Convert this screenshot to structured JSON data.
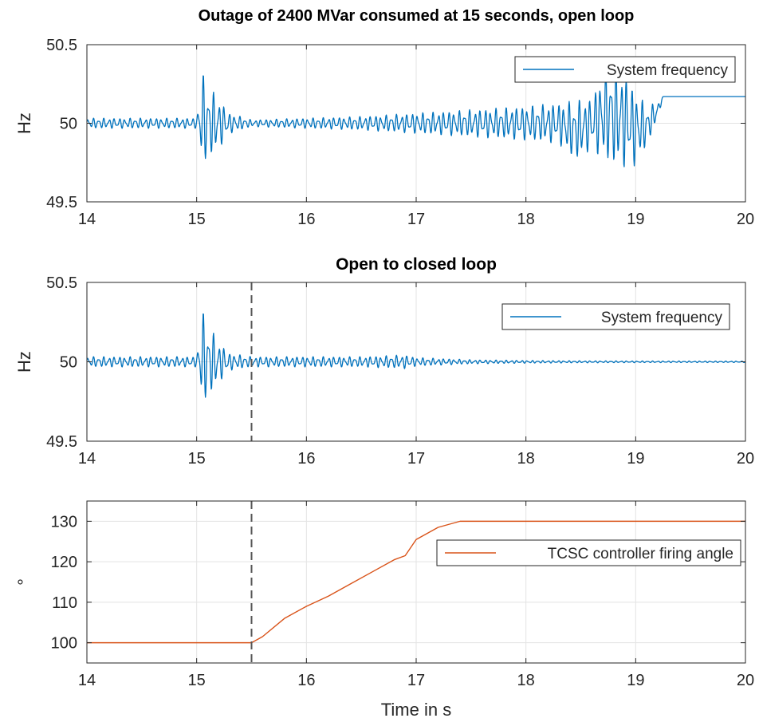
{
  "colors": {
    "frequency": "#0072BD",
    "angle": "#D95319",
    "grid": "#e3e3e3",
    "axis": "#262626"
  },
  "chart_data": [
    {
      "type": "line",
      "title": "Outage of 2400 MVar consumed at 15 seconds, open loop",
      "ylabel": "Hz",
      "xlabel": "",
      "xlim": [
        14,
        20
      ],
      "ylim": [
        49.5,
        50.5
      ],
      "xticks": [
        "14",
        "15",
        "16",
        "17",
        "18",
        "19",
        "20"
      ],
      "yticks": [
        "49.5",
        "50",
        "50.5"
      ],
      "grid": true,
      "legend_position": "top-right",
      "series": [
        {
          "name": "System frequency",
          "x": [
            14.0,
            14.5,
            15.0,
            15.05,
            15.1,
            15.2,
            15.3,
            15.5,
            16.0,
            16.5,
            17.0,
            17.5,
            18.0,
            18.3,
            18.45,
            18.6,
            18.7,
            18.8,
            18.9,
            19.0,
            19.1,
            19.2,
            19.25,
            19.5,
            20.0
          ],
          "amplitude": [
            0.03,
            0.03,
            0.03,
            0.28,
            0.22,
            0.15,
            0.06,
            0.02,
            0.03,
            0.04,
            0.06,
            0.08,
            0.1,
            0.12,
            0.18,
            0.15,
            0.26,
            0.3,
            0.28,
            0.22,
            0.12,
            0.05,
            0.0,
            0.0,
            0.0
          ],
          "center": [
            50.0,
            50.0,
            50.0,
            50.03,
            50.0,
            50.0,
            50.0,
            50.0,
            50.0,
            50.0,
            50.0,
            50.0,
            50.0,
            50.0,
            49.95,
            50.0,
            50.05,
            50.05,
            50.02,
            49.97,
            49.98,
            50.08,
            50.17,
            50.17,
            50.17
          ]
        }
      ]
    },
    {
      "type": "line",
      "title": "Open to closed loop",
      "ylabel": "Hz",
      "xlabel": "",
      "xlim": [
        14,
        20
      ],
      "ylim": [
        49.5,
        50.5
      ],
      "xticks": [
        "14",
        "15",
        "16",
        "17",
        "18",
        "19",
        "20"
      ],
      "yticks": [
        "49.5",
        "50",
        "50.5"
      ],
      "grid": true,
      "legend_position": "top-right",
      "vline": 15.5,
      "series": [
        {
          "name": "System frequency",
          "x": [
            14.0,
            14.5,
            15.0,
            15.05,
            15.1,
            15.2,
            15.3,
            15.5,
            16.0,
            16.5,
            16.9,
            17.0,
            17.5,
            18.0,
            18.5,
            19.0,
            20.0
          ],
          "amplitude": [
            0.03,
            0.03,
            0.03,
            0.28,
            0.22,
            0.12,
            0.05,
            0.03,
            0.03,
            0.03,
            0.04,
            0.025,
            0.012,
            0.008,
            0.006,
            0.005,
            0.004
          ],
          "center": [
            50.0,
            50.0,
            50.0,
            50.03,
            50.0,
            50.0,
            50.0,
            50.0,
            50.0,
            50.0,
            50.0,
            50.0,
            50.0,
            50.0,
            50.0,
            50.0,
            50.0
          ]
        }
      ]
    },
    {
      "type": "line",
      "title": "",
      "ylabel": "°",
      "xlabel": "Time in s",
      "xlim": [
        14,
        20
      ],
      "ylim": [
        95,
        135
      ],
      "xticks": [
        "14",
        "15",
        "16",
        "17",
        "18",
        "19",
        "20"
      ],
      "yticks": [
        "100",
        "110",
        "120",
        "130"
      ],
      "grid": true,
      "legend_position": "right",
      "vline": 15.5,
      "series": [
        {
          "name": "TCSC controller firing angle",
          "x": [
            14.0,
            15.5,
            15.6,
            15.8,
            16.0,
            16.2,
            16.4,
            16.6,
            16.8,
            16.9,
            17.0,
            17.2,
            17.4,
            20.0
          ],
          "y": [
            100.0,
            100.0,
            101.5,
            106.0,
            109.0,
            111.5,
            114.5,
            117.5,
            120.5,
            121.5,
            125.5,
            128.5,
            130.0,
            130.0
          ]
        }
      ]
    }
  ]
}
